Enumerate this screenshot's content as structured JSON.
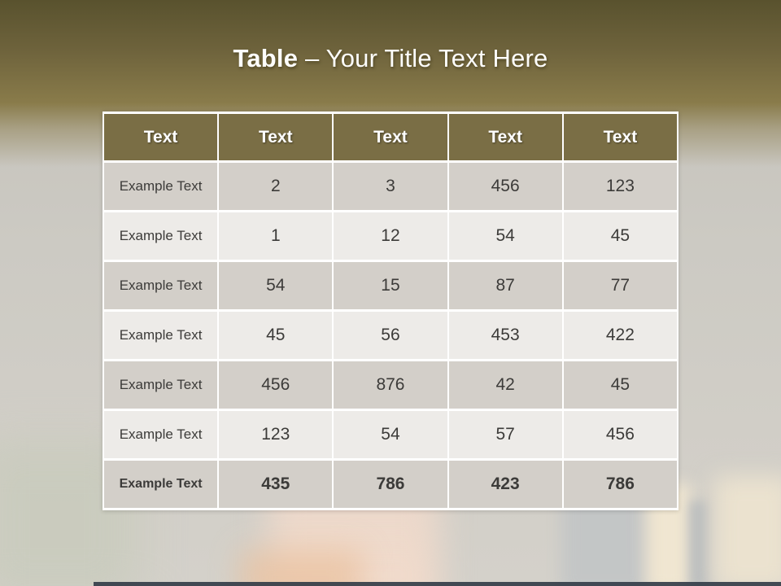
{
  "title": {
    "bold_part": "Table",
    "regular_part": "– Your Title Text Here"
  },
  "table": {
    "headers": [
      "Text",
      "Text",
      "Text",
      "Text",
      "Text"
    ],
    "rows": [
      {
        "label": "Example Text",
        "values": [
          "2",
          "3",
          "456",
          "123"
        ],
        "bold": false
      },
      {
        "label": "Example Text",
        "values": [
          "1",
          "12",
          "54",
          "45"
        ],
        "bold": false
      },
      {
        "label": "Example Text",
        "values": [
          "54",
          "15",
          "87",
          "77"
        ],
        "bold": false
      },
      {
        "label": "Example Text",
        "values": [
          "45",
          "56",
          "453",
          "422"
        ],
        "bold": false
      },
      {
        "label": "Example Text",
        "values": [
          "456",
          "876",
          "42",
          "45"
        ],
        "bold": false
      },
      {
        "label": "Example Text",
        "values": [
          "123",
          "54",
          "57",
          "456"
        ],
        "bold": false
      },
      {
        "label": "Example Text",
        "values": [
          "435",
          "786",
          "423",
          "786"
        ],
        "bold": true
      }
    ]
  },
  "colors": {
    "title_band_top": "#59522e",
    "title_band_mid": "#897b4a",
    "header_bg": "#7a6e45",
    "row_dark": "#d3cfc9",
    "row_light": "#edebe8",
    "title_text": "#fdfdfb",
    "bottom_bar": "#313a46"
  }
}
